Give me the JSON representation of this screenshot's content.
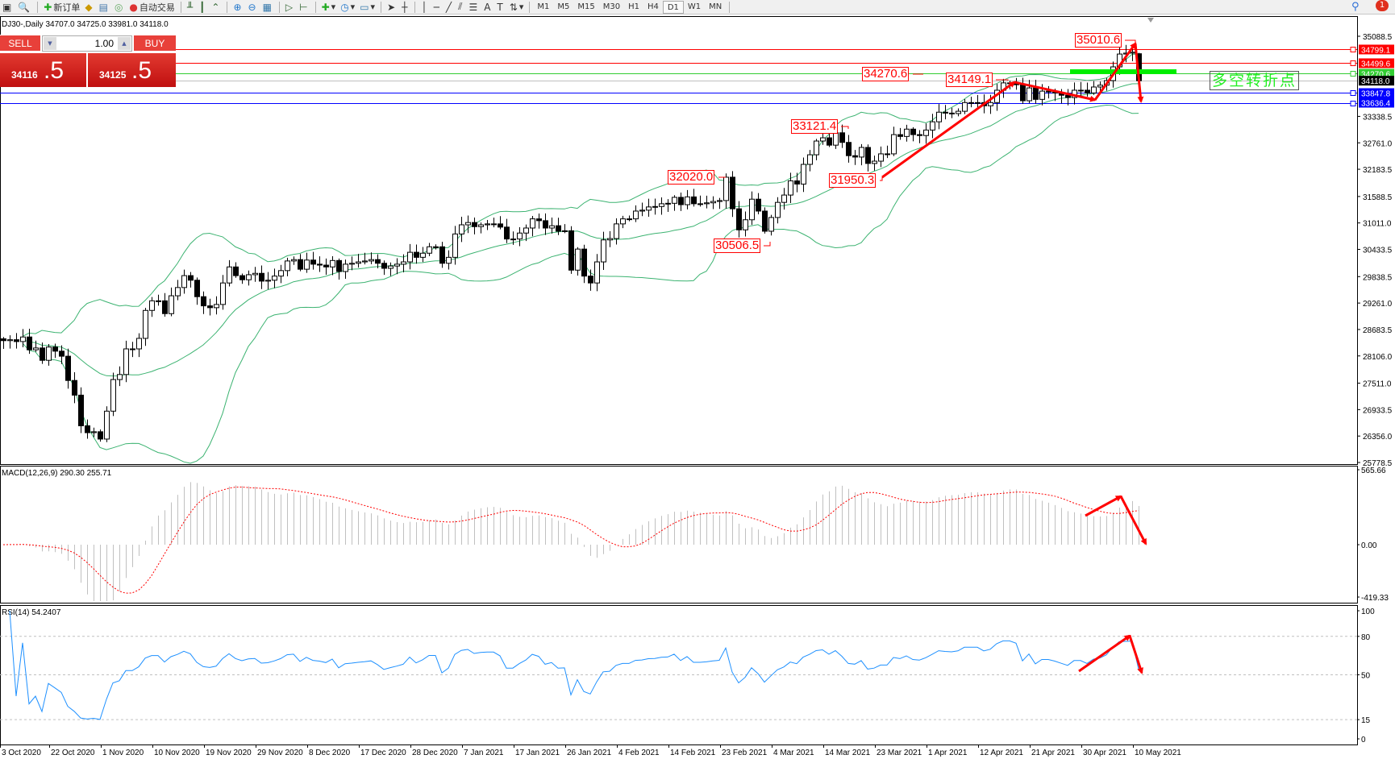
{
  "toolbar": {
    "new_order": "新订单",
    "auto_trading": "自动交易",
    "timeframes": [
      "M1",
      "M5",
      "M15",
      "M30",
      "H1",
      "H4",
      "D1",
      "W1",
      "MN"
    ],
    "active_timeframe": "D1",
    "notification_count": "1"
  },
  "chart_header": {
    "title": "DJ30-,Daily 34707.0 34725.0 33981.0 34118.0"
  },
  "trade_panel": {
    "sell_label": "SELL",
    "buy_label": "BUY",
    "lot": "1.00",
    "sell_price_main": "34116",
    "sell_price_frac": ".5",
    "buy_price_main": "34125",
    "buy_price_frac": ".5"
  },
  "annotation_text": "多空转折点",
  "chart_data": {
    "type": "candlestick",
    "symbol": "DJ30-",
    "timeframe": "Daily",
    "closes": [
      28440,
      28460,
      28420,
      28520,
      28240,
      28280,
      28010,
      28300,
      28210,
      28100,
      27570,
      27250,
      26580,
      26430,
      26450,
      26290,
      26900,
      27590,
      27700,
      28260,
      28260,
      28490,
      29100,
      29310,
      29310,
      29030,
      29420,
      29600,
      29860,
      29760,
      29400,
      29200,
      29160,
      29230,
      29700,
      30050,
      29860,
      29770,
      29880,
      29910,
      29740,
      29760,
      29850,
      29970,
      30180,
      30210,
      30000,
      30200,
      30110,
      30090,
      30050,
      30190,
      29950,
      30110,
      30130,
      30160,
      30180,
      30210,
      30130,
      30020,
      30070,
      30110,
      30160,
      30370,
      30260,
      30350,
      30490,
      30490,
      30130,
      30260,
      30770,
      30970,
      31020,
      30930,
      30970,
      30990,
      30990,
      30920,
      30660,
      30660,
      30790,
      30900,
      31100,
      31060,
      30900,
      30950,
      30830,
      30840,
      29980,
      30440,
      29850,
      29700,
      30160,
      30640,
      30670,
      30990,
      31100,
      31100,
      31270,
      31290,
      31360,
      31370,
      31430,
      31440,
      31570,
      31410,
      31580,
      31430,
      31430,
      31450,
      31480,
      31500,
      32010,
      31320,
      30860,
      31080,
      31530,
      31270,
      30830,
      31130,
      31460,
      31620,
      31930,
      31860,
      32290,
      32500,
      32800,
      32870,
      32710,
      32980,
      32770,
      32480,
      32450,
      32660,
      32310,
      32360,
      32520,
      32520,
      32940,
      32900,
      33060,
      32940,
      32920,
      33040,
      33220,
      33430,
      33410,
      33400,
      33450,
      33640,
      33640,
      33640,
      33570,
      33640,
      33910,
      34070,
      34070,
      34030,
      33680,
      33960,
      33710,
      33890,
      33890,
      33850,
      33800,
      33750,
      33910,
      33910,
      33850,
      33980,
      34020,
      34120,
      34420,
      34700,
      34720,
      34740,
      34118
    ],
    "last_bar": {
      "open": 34707.0,
      "high": 34725.0,
      "low": 33981.0,
      "close": 34118.0
    },
    "x_tick_labels": [
      "3 Oct 2020",
      "22 Oct 2020",
      "1 Nov 2020",
      "10 Nov 2020",
      "19 Nov 2020",
      "29 Nov 2020",
      "8 Dec 2020",
      "17 Dec 2020",
      "28 Dec 2020",
      "7 Jan 2021",
      "17 Jan 2021",
      "26 Jan 2021",
      "4 Feb 2021",
      "14 Feb 2021",
      "23 Feb 2021",
      "4 Mar 2021",
      "14 Mar 2021",
      "23 Mar 2021",
      "1 Apr 2021",
      "12 Apr 2021",
      "21 Apr 2021",
      "30 Apr 2021",
      "10 May 2021"
    ],
    "y_tick_labels": [
      "35088.5",
      "33338.5",
      "32761.0",
      "32183.5",
      "31588.5",
      "31011.0",
      "30433.5",
      "29838.5",
      "29261.0",
      "28683.5",
      "28106.0",
      "27511.0",
      "26933.5",
      "26356.0",
      "25778.5"
    ],
    "ylim": [
      25778.5,
      35088.5
    ],
    "horizontal_lines": [
      {
        "price": "34799.1",
        "color": "#ff0000"
      },
      {
        "price": "34499.6",
        "color": "#ff0000"
      },
      {
        "price": "34270.6",
        "color": "#32cd32"
      },
      {
        "price": "34118.0",
        "color": "#000000",
        "line_color": "#c0c0c0"
      },
      {
        "price": "33847.8",
        "color": "#0000ff"
      },
      {
        "price": "33636.4",
        "color": "#0000ff"
      }
    ],
    "price_annotations": [
      "35010.6",
      "34270.6",
      "34149.1",
      "33121.4",
      "32020.0",
      "31950.3",
      "30506.5"
    ],
    "bollinger_color": "#3cb371",
    "macd": {
      "label": "MACD(12,26,9) 290.30 255.71",
      "y_tick_labels": [
        "565.66",
        "0.00",
        "-419.33"
      ],
      "ylim": [
        -419.33,
        565.66
      ],
      "histogram_color": "#c0c0c0",
      "signal_color": "#ff0000"
    },
    "rsi": {
      "label": "RSI(14) 54.2407",
      "y_tick_labels": [
        "100",
        "80",
        "50",
        "15",
        "0"
      ],
      "levels": [
        80,
        50,
        15
      ],
      "line_color": "#1e90ff"
    },
    "arrow_color": "#ff0000"
  }
}
